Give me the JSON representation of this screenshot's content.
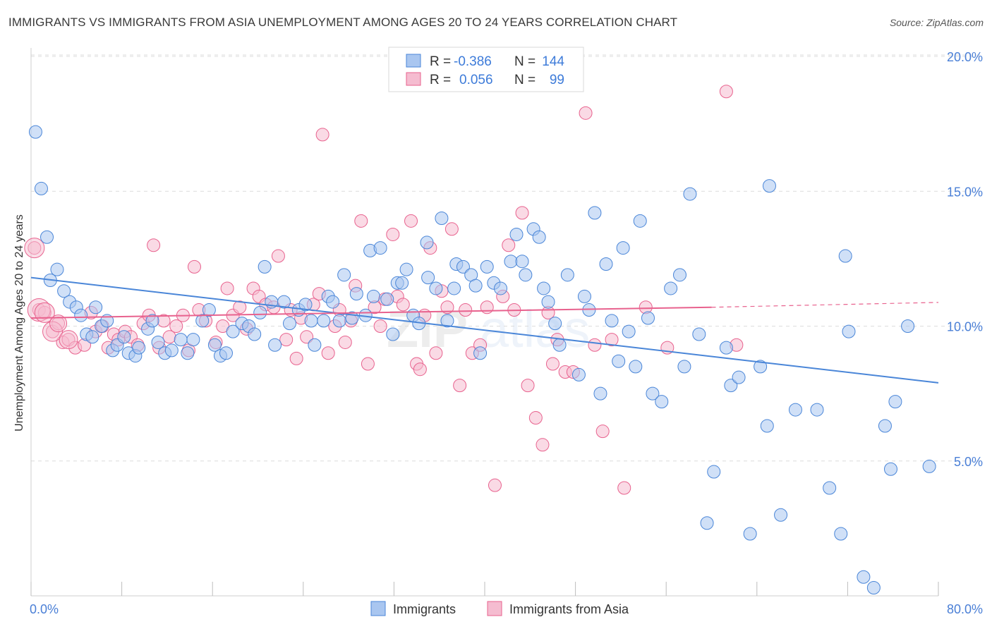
{
  "header": {
    "title": "IMMIGRANTS VS IMMIGRANTS FROM ASIA UNEMPLOYMENT AMONG AGES 20 TO 24 YEARS CORRELATION CHART",
    "source": "Source: ZipAtlas.com"
  },
  "watermark": {
    "zip": "ZIP",
    "atlas": "atlas"
  },
  "colors": {
    "blue": "#4a86d8",
    "blue_fill": "#a9c6f0",
    "pink": "#e8628e",
    "pink_fill": "#f5bcd0",
    "axis_tick": "#4a7fd6"
  },
  "legend_top": {
    "rows": [
      {
        "r_label": "R =",
        "r_value": "-0.386",
        "n_label": "N =",
        "n_value": "144"
      },
      {
        "r_label": "R =",
        "r_value": "0.056",
        "n_label": "N =",
        "n_value": "99"
      }
    ]
  },
  "legend_bottom": {
    "items": [
      {
        "label": "Immigrants"
      },
      {
        "label": "Immigrants from Asia"
      }
    ]
  },
  "chart_data": {
    "type": "scatter",
    "title": "IMMIGRANTS VS IMMIGRANTS FROM ASIA UNEMPLOYMENT AMONG AGES 20 TO 24 YEARS CORRELATION CHART",
    "xlabel": "",
    "ylabel": "Unemployment Among Ages 20 to 24 years",
    "xlim": [
      0,
      80
    ],
    "ylim": [
      0,
      20.6
    ],
    "x_tick_labels": [
      "0.0%",
      "80.0%"
    ],
    "y_tick_labels": [
      "5.0%",
      "10.0%",
      "15.0%",
      "20.0%"
    ],
    "y_ticks": [
      5,
      10,
      15,
      20
    ],
    "grid": true,
    "series": [
      {
        "name": "Immigrants",
        "r": -0.386,
        "n": 144,
        "trend": {
          "x0": 0,
          "y0": 11.8,
          "x1": 80,
          "y1": 7.9
        },
        "points": [
          [
            0.4,
            17.2
          ],
          [
            0.9,
            15.1
          ],
          [
            1.4,
            13.3
          ],
          [
            1.7,
            11.7
          ],
          [
            2.3,
            12.1
          ],
          [
            2.9,
            11.3
          ],
          [
            3.4,
            10.9
          ],
          [
            4.0,
            10.7
          ],
          [
            4.4,
            10.4
          ],
          [
            4.9,
            9.7
          ],
          [
            5.4,
            9.6
          ],
          [
            5.7,
            10.7
          ],
          [
            6.2,
            10.0
          ],
          [
            6.7,
            10.2
          ],
          [
            7.2,
            9.1
          ],
          [
            7.6,
            9.3
          ],
          [
            8.2,
            9.6
          ],
          [
            8.6,
            9.0
          ],
          [
            9.2,
            8.9
          ],
          [
            9.5,
            9.2
          ],
          [
            10.3,
            9.9
          ],
          [
            10.7,
            10.2
          ],
          [
            11.2,
            9.4
          ],
          [
            11.8,
            9.0
          ],
          [
            12.4,
            9.1
          ],
          [
            13.2,
            9.5
          ],
          [
            13.8,
            9.0
          ],
          [
            14.3,
            9.5
          ],
          [
            15.1,
            10.2
          ],
          [
            15.7,
            10.6
          ],
          [
            16.2,
            9.3
          ],
          [
            16.7,
            8.9
          ],
          [
            17.2,
            9.0
          ],
          [
            17.8,
            9.8
          ],
          [
            18.6,
            10.1
          ],
          [
            19.2,
            10.0
          ],
          [
            19.7,
            9.7
          ],
          [
            20.2,
            10.5
          ],
          [
            20.6,
            12.2
          ],
          [
            21.2,
            10.9
          ],
          [
            21.5,
            9.3
          ],
          [
            22.3,
            10.9
          ],
          [
            22.8,
            10.1
          ],
          [
            23.6,
            10.6
          ],
          [
            24.2,
            10.8
          ],
          [
            24.7,
            10.2
          ],
          [
            25.0,
            9.3
          ],
          [
            25.8,
            10.2
          ],
          [
            26.2,
            11.1
          ],
          [
            26.6,
            10.9
          ],
          [
            27.2,
            10.2
          ],
          [
            27.6,
            11.9
          ],
          [
            28.3,
            10.3
          ],
          [
            28.7,
            11.2
          ],
          [
            29.5,
            10.4
          ],
          [
            29.9,
            12.8
          ],
          [
            30.2,
            11.1
          ],
          [
            30.8,
            12.9
          ],
          [
            31.4,
            11.0
          ],
          [
            31.9,
            9.7
          ],
          [
            32.3,
            11.6
          ],
          [
            32.7,
            11.6
          ],
          [
            33.1,
            12.1
          ],
          [
            33.7,
            10.4
          ],
          [
            34.2,
            10.1
          ],
          [
            34.9,
            13.1
          ],
          [
            35.0,
            11.8
          ],
          [
            35.7,
            11.4
          ],
          [
            36.2,
            14.0
          ],
          [
            36.7,
            10.2
          ],
          [
            37.3,
            11.4
          ],
          [
            37.5,
            12.3
          ],
          [
            38.1,
            12.2
          ],
          [
            38.8,
            11.9
          ],
          [
            39.2,
            11.5
          ],
          [
            39.6,
            9.0
          ],
          [
            40.2,
            12.2
          ],
          [
            40.8,
            11.6
          ],
          [
            41.4,
            11.4
          ],
          [
            42.3,
            12.4
          ],
          [
            42.8,
            13.4
          ],
          [
            43.3,
            12.4
          ],
          [
            43.6,
            11.9
          ],
          [
            44.3,
            13.6
          ],
          [
            44.8,
            13.3
          ],
          [
            45.2,
            11.4
          ],
          [
            45.6,
            10.9
          ],
          [
            46.2,
            10.1
          ],
          [
            46.6,
            9.3
          ],
          [
            47.3,
            11.9
          ],
          [
            48.3,
            8.2
          ],
          [
            48.8,
            11.1
          ],
          [
            49.2,
            10.6
          ],
          [
            49.7,
            14.2
          ],
          [
            50.2,
            7.5
          ],
          [
            50.7,
            12.3
          ],
          [
            51.2,
            10.2
          ],
          [
            51.8,
            8.7
          ],
          [
            52.2,
            12.9
          ],
          [
            52.7,
            9.8
          ],
          [
            53.3,
            8.5
          ],
          [
            53.7,
            13.9
          ],
          [
            54.4,
            10.3
          ],
          [
            54.8,
            7.5
          ],
          [
            55.6,
            7.2
          ],
          [
            56.4,
            11.4
          ],
          [
            57.2,
            11.9
          ],
          [
            57.6,
            8.5
          ],
          [
            58.1,
            14.9
          ],
          [
            58.9,
            9.7
          ],
          [
            59.6,
            2.7
          ],
          [
            60.2,
            4.6
          ],
          [
            61.3,
            9.2
          ],
          [
            61.7,
            7.8
          ],
          [
            62.4,
            8.1
          ],
          [
            63.4,
            2.3
          ],
          [
            64.3,
            8.5
          ],
          [
            64.9,
            6.3
          ],
          [
            65.1,
            15.2
          ],
          [
            66.1,
            3.0
          ],
          [
            67.4,
            6.9
          ],
          [
            69.3,
            6.9
          ],
          [
            70.4,
            4.0
          ],
          [
            71.4,
            2.3
          ],
          [
            71.8,
            12.6
          ],
          [
            72.1,
            9.8
          ],
          [
            73.4,
            0.7
          ],
          [
            74.3,
            0.3
          ],
          [
            75.3,
            6.3
          ],
          [
            75.8,
            4.7
          ],
          [
            76.2,
            7.2
          ],
          [
            77.3,
            10.0
          ],
          [
            79.2,
            4.8
          ]
        ]
      },
      {
        "name": "Immigrants from Asia",
        "r": 0.056,
        "n": 99,
        "trend": {
          "x0": 0,
          "y0": 10.3,
          "x1": 60,
          "y1": 10.7,
          "dashed_to_x": 80,
          "dashed_to_y": 10.88
        },
        "points": [
          [
            0.3,
            12.9
          ],
          [
            0.7,
            10.6
          ],
          [
            1.2,
            10.5
          ],
          [
            1.9,
            9.8
          ],
          [
            2.4,
            10.1
          ],
          [
            2.8,
            9.4
          ],
          [
            3.3,
            9.5
          ],
          [
            3.9,
            9.2
          ],
          [
            4.7,
            9.3
          ],
          [
            5.3,
            10.5
          ],
          [
            5.7,
            9.8
          ],
          [
            6.3,
            10.0
          ],
          [
            6.8,
            9.2
          ],
          [
            7.3,
            9.7
          ],
          [
            7.7,
            9.5
          ],
          [
            8.3,
            9.8
          ],
          [
            8.8,
            9.6
          ],
          [
            9.4,
            9.3
          ],
          [
            9.9,
            10.1
          ],
          [
            10.4,
            10.4
          ],
          [
            10.8,
            13.0
          ],
          [
            11.3,
            9.2
          ],
          [
            11.7,
            10.2
          ],
          [
            12.2,
            9.6
          ],
          [
            12.8,
            10.0
          ],
          [
            13.4,
            10.4
          ],
          [
            13.9,
            9.1
          ],
          [
            14.4,
            12.2
          ],
          [
            14.8,
            10.6
          ],
          [
            15.4,
            10.2
          ],
          [
            16.3,
            9.4
          ],
          [
            16.9,
            10.0
          ],
          [
            17.3,
            11.4
          ],
          [
            17.8,
            10.4
          ],
          [
            18.4,
            10.7
          ],
          [
            19.0,
            9.9
          ],
          [
            19.6,
            11.4
          ],
          [
            20.1,
            11.1
          ],
          [
            20.7,
            10.8
          ],
          [
            21.4,
            10.7
          ],
          [
            21.8,
            12.6
          ],
          [
            22.5,
            9.5
          ],
          [
            22.9,
            10.6
          ],
          [
            23.4,
            8.8
          ],
          [
            23.8,
            10.3
          ],
          [
            24.3,
            9.6
          ],
          [
            24.9,
            10.8
          ],
          [
            25.4,
            11.2
          ],
          [
            25.7,
            17.1
          ],
          [
            26.2,
            9.0
          ],
          [
            26.8,
            10.0
          ],
          [
            27.2,
            10.6
          ],
          [
            27.7,
            9.4
          ],
          [
            28.2,
            10.2
          ],
          [
            28.6,
            11.5
          ],
          [
            29.1,
            13.9
          ],
          [
            29.7,
            8.6
          ],
          [
            30.3,
            10.7
          ],
          [
            30.8,
            10.0
          ],
          [
            31.2,
            11.0
          ],
          [
            31.9,
            13.4
          ],
          [
            32.3,
            11.1
          ],
          [
            32.8,
            10.8
          ],
          [
            33.5,
            13.9
          ],
          [
            34.0,
            8.6
          ],
          [
            34.3,
            8.4
          ],
          [
            34.7,
            10.4
          ],
          [
            35.2,
            12.9
          ],
          [
            35.7,
            9.0
          ],
          [
            36.2,
            11.3
          ],
          [
            36.7,
            10.7
          ],
          [
            37.1,
            13.6
          ],
          [
            37.8,
            7.8
          ],
          [
            38.3,
            10.6
          ],
          [
            38.9,
            9.0
          ],
          [
            39.6,
            9.3
          ],
          [
            40.2,
            10.7
          ],
          [
            40.9,
            4.1
          ],
          [
            41.6,
            11.1
          ],
          [
            42.1,
            13.0
          ],
          [
            42.6,
            10.6
          ],
          [
            43.3,
            14.2
          ],
          [
            43.8,
            7.8
          ],
          [
            44.5,
            6.6
          ],
          [
            45.1,
            5.6
          ],
          [
            45.6,
            10.5
          ],
          [
            46.0,
            8.6
          ],
          [
            46.4,
            9.5
          ],
          [
            47.1,
            8.3
          ],
          [
            47.8,
            8.3
          ],
          [
            48.9,
            17.9
          ],
          [
            49.7,
            9.3
          ],
          [
            50.4,
            6.1
          ],
          [
            51.2,
            9.5
          ],
          [
            52.3,
            4.0
          ],
          [
            54.2,
            10.7
          ],
          [
            56.1,
            9.2
          ],
          [
            61.3,
            18.7
          ],
          [
            62.2,
            9.3
          ]
        ]
      }
    ]
  }
}
